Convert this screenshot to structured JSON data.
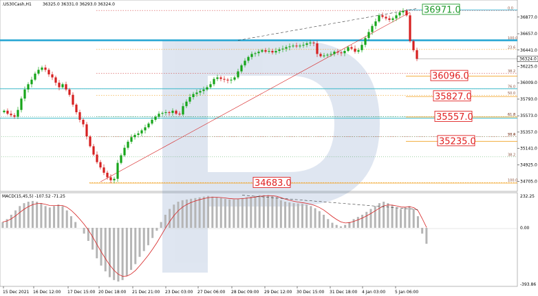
{
  "header": {
    "symbol": ".US30Cash,H1",
    "ohlc": "36325.0 36331.0 36293.0 36324.0"
  },
  "macd_header": "MACD(15,45,5) -107.52 -71.25",
  "colors": {
    "bull": "#17a51a",
    "bear": "#d62020",
    "fib": "#d44a4a",
    "support": "#15a3c8",
    "orange": "#f0a020",
    "green_label": "#1e9a2a",
    "red_label": "#e02020"
  },
  "chart_data": [
    {
      "type": "candlestick",
      "title": ".US30Cash,H1",
      "ylim": [
        34592,
        37012
      ],
      "y_ticks": [
        "36877.0",
        "36657.0",
        "36441.0",
        "36225.0",
        "36009.0",
        "35793.0",
        "35573.0",
        "35357.0",
        "35141.0",
        "34925.0",
        "34705.0"
      ],
      "current_price": "36324.0",
      "x_ticks": [
        "15 Dec 2021",
        "16 Dec 12:00",
        "17 Dec 15:00",
        "20 Dec 18:00",
        "21 Dec 21:00",
        "23 Dec 03:00",
        "27 Dec 06:00",
        "28 Dec 09:00",
        "29 Dec 12:00",
        "30 Dec 15:00",
        "31 Dec 18:00",
        "4 Jan 03:00",
        "5 Jan 06:00"
      ],
      "close_path": [
        35640,
        35600,
        35580,
        35560,
        35650,
        35800,
        35920,
        35990,
        36050,
        36130,
        36180,
        36210,
        36180,
        36120,
        36080,
        36010,
        35950,
        35990,
        35920,
        35850,
        35720,
        35620,
        35520,
        35460,
        35300,
        35170,
        35060,
        34960,
        34890,
        34820,
        34760,
        34720,
        34740,
        34950,
        35050,
        35150,
        35230,
        35290,
        35320,
        35340,
        35380,
        35420,
        35470,
        35520,
        35560,
        35600,
        35610,
        35620,
        35610,
        35640,
        35600,
        35590,
        35700,
        35760,
        35820,
        35860,
        35880,
        35900,
        35920,
        35950,
        35990,
        36060,
        36080,
        36060,
        36050,
        36040,
        36050,
        36080,
        36160,
        36240,
        36300,
        36350,
        36390,
        36400,
        36420,
        36440,
        36420,
        36430,
        36410,
        36430,
        36450,
        36460,
        36480,
        36490,
        36500,
        36490,
        36500,
        36510,
        36530,
        36540,
        36530,
        36390,
        36360,
        36370,
        36380,
        36390,
        36420,
        36410,
        36400,
        36430,
        36480,
        36460,
        36420,
        36440,
        36510,
        36600,
        36680,
        36760,
        36820,
        36900,
        36880,
        36860,
        36840,
        36860,
        36900,
        36940,
        36960,
        36900,
        36560,
        36440,
        36324
      ],
      "fibonacci_levels": [
        {
          "label": "0.0"
        },
        {
          "label": "23.6"
        },
        {
          "label": "38.2"
        },
        {
          "label": "50.0"
        },
        {
          "label": "61.8"
        },
        {
          "label": "76.4"
        },
        {
          "label": "100.0"
        }
      ],
      "fibonacci_levels_2": [
        {
          "label": "100.0"
        },
        {
          "label": "76.0"
        },
        {
          "label": "61.8"
        },
        {
          "label": "50.0"
        },
        {
          "label": "38.2"
        }
      ],
      "price_labels": [
        {
          "text": "36971.0",
          "value": 36971,
          "color": "green"
        },
        {
          "text": "36096.0",
          "value": 36096,
          "color": "red"
        },
        {
          "text": "35827.0",
          "value": 35827,
          "color": "red"
        },
        {
          "text": "35557.0",
          "value": 35557,
          "color": "red"
        },
        {
          "text": "35235.0",
          "value": 35235,
          "color": "red"
        },
        {
          "text": "34683.0",
          "value": 34683,
          "color": "red"
        }
      ],
      "support_levels": [
        36570,
        35930,
        35540
      ]
    },
    {
      "type": "histogram",
      "title": "MACD(15,45,5) -107.52 -71.25",
      "ylim": [
        -393.86,
        232.25
      ],
      "y_ticks": [
        "232.25",
        "0.00",
        "-393.86"
      ],
      "values": [
        40,
        60,
        90,
        120,
        150,
        170,
        180,
        185,
        180,
        170,
        150,
        140,
        150,
        160,
        150,
        120,
        80,
        40,
        0,
        -40,
        -90,
        -150,
        -210,
        -260,
        -300,
        -340,
        -360,
        -370,
        -360,
        -330,
        -290,
        -250,
        -200,
        -160,
        -120,
        -70,
        -20,
        40,
        90,
        130,
        160,
        180,
        190,
        195,
        200,
        205,
        210,
        215,
        220,
        215,
        210,
        205,
        200,
        195,
        195,
        200,
        205,
        210,
        215,
        220,
        225,
        225,
        225,
        220,
        210,
        190,
        180,
        175,
        170,
        168,
        165,
        160,
        150,
        135,
        115,
        90,
        60,
        35,
        20,
        10,
        20,
        40,
        60,
        75,
        90,
        110,
        130,
        150,
        170,
        180,
        170,
        155,
        140,
        130,
        140,
        150,
        130,
        80,
        -40,
        -110
      ]
    }
  ]
}
